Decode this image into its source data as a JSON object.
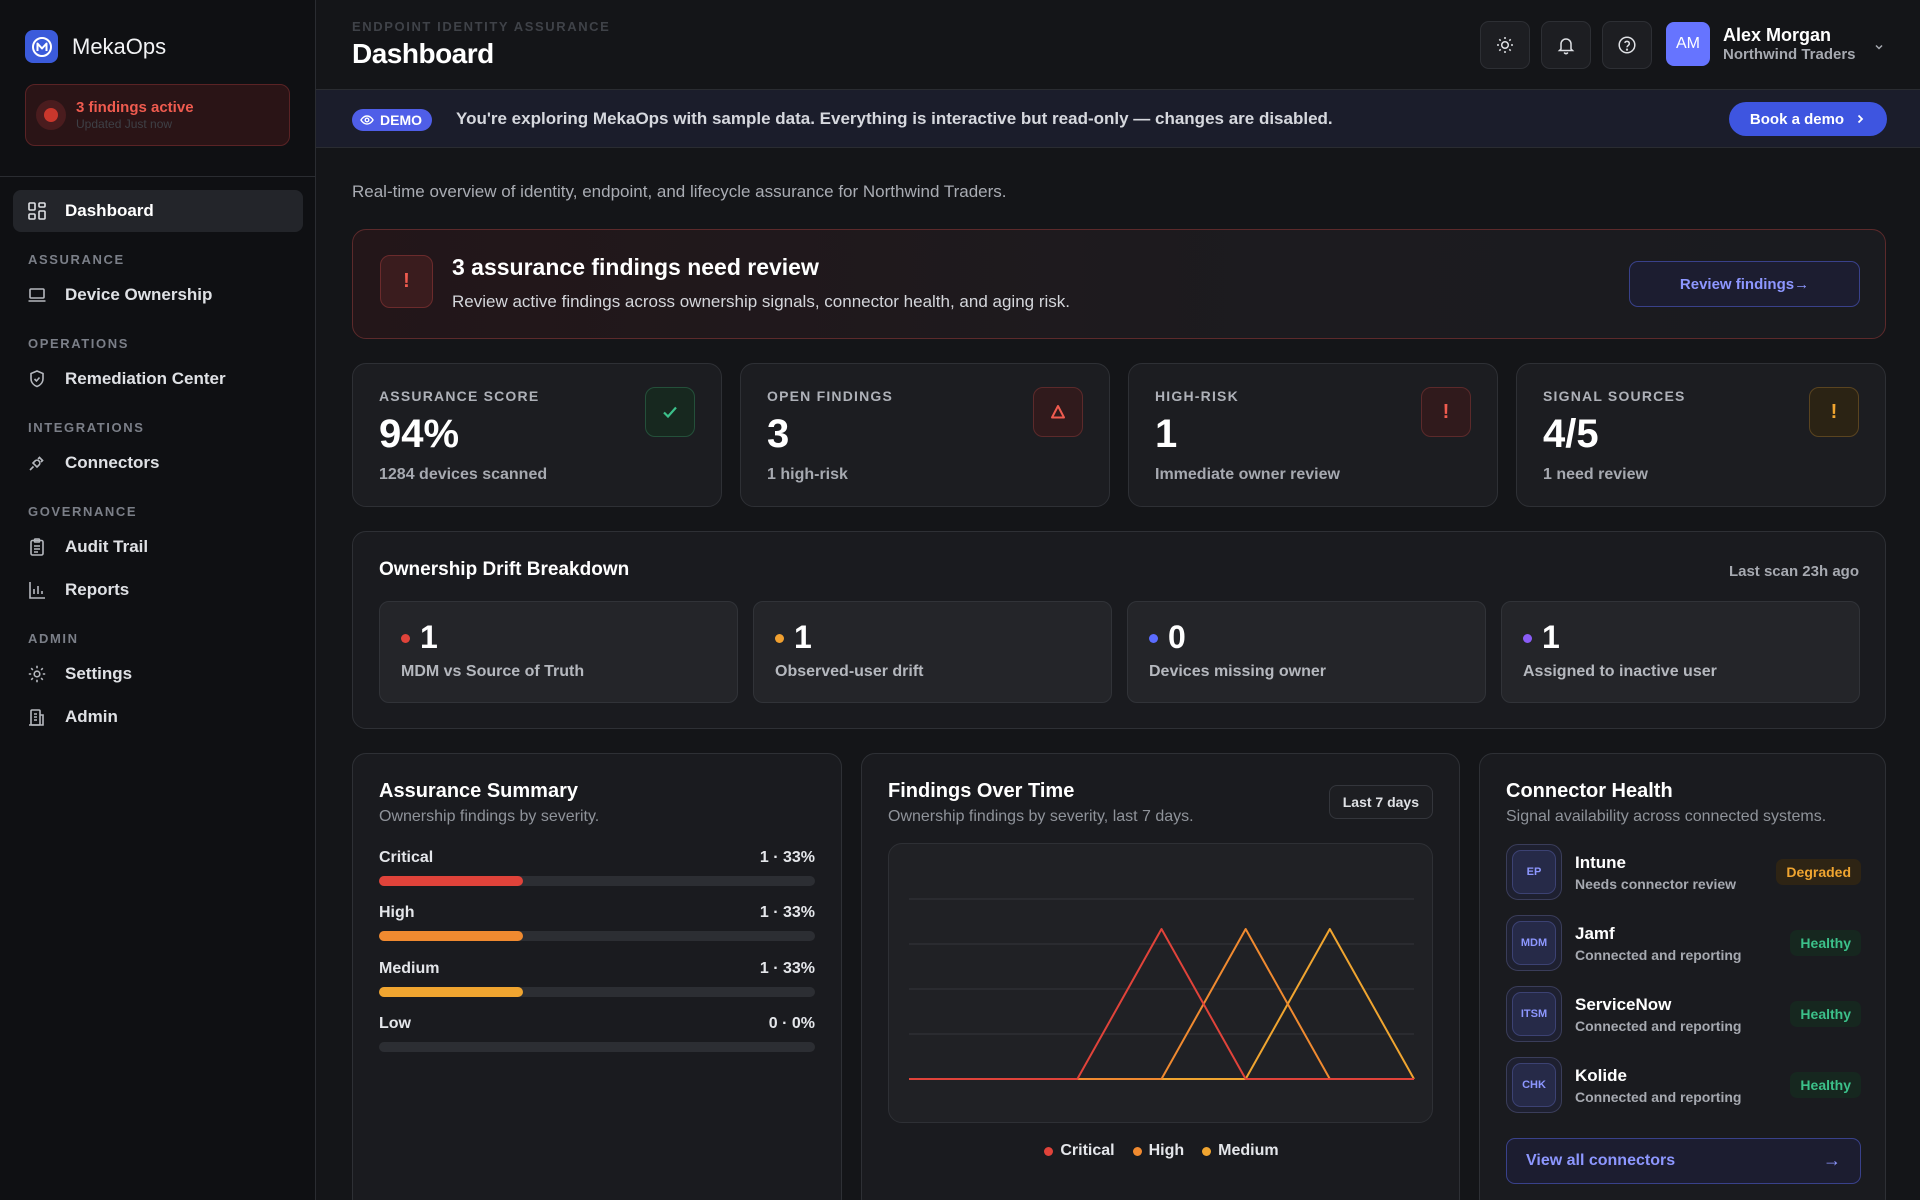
{
  "brand": {
    "name": "MekaOps"
  },
  "sidebar": {
    "alert": {
      "title": "3 findings active",
      "updated": "Updated Just now"
    },
    "dashboard_label": "Dashboard",
    "sections": {
      "assurance": "ASSURANCE",
      "operations": "OPERATIONS",
      "integrations": "INTEGRATIONS",
      "governance": "GOVERNANCE",
      "admin": "ADMIN"
    },
    "items": {
      "device_ownership": "Device Ownership",
      "remediation_center": "Remediation Center",
      "connectors": "Connectors",
      "audit_trail": "Audit Trail",
      "reports": "Reports",
      "settings": "Settings",
      "admin": "Admin"
    }
  },
  "header": {
    "eyebrow": "ENDPOINT IDENTITY ASSURANCE",
    "title": "Dashboard",
    "user": {
      "initials": "AM",
      "name": "Alex Morgan",
      "org": "Northwind Traders"
    }
  },
  "demo": {
    "tag": "DEMO",
    "text": "You're exploring MekaOps with sample data. Everything is interactive but read-only — changes are disabled.",
    "button": "Book a demo"
  },
  "subtitle": "Real-time overview of identity, endpoint, and lifecycle assurance for Northwind Traders.",
  "findings_banner": {
    "title": "3 assurance findings need review",
    "description": "Review active findings across ownership signals, connector health, and aging risk.",
    "button": "Review findings→"
  },
  "kpis": [
    {
      "label": "ASSURANCE SCORE",
      "value": "94%",
      "sub": "1284 devices scanned",
      "icon": "check-icon"
    },
    {
      "label": "OPEN FINDINGS",
      "value": "3",
      "sub": "1 high-risk",
      "icon": "triangle-icon"
    },
    {
      "label": "HIGH-RISK",
      "value": "1",
      "sub": "Immediate owner review",
      "icon": "exclamation-icon"
    },
    {
      "label": "SIGNAL SOURCES",
      "value": "4/5",
      "sub": "1 need review",
      "icon": "exclamation-icon"
    }
  ],
  "drift": {
    "title": "Ownership Drift Breakdown",
    "last_scan": "Last scan 23h ago",
    "items": [
      {
        "value": "1",
        "label": "MDM vs Source of Truth",
        "color": "#e0433a"
      },
      {
        "value": "1",
        "label": "Observed-user drift",
        "color": "#f0a030"
      },
      {
        "value": "0",
        "label": "Devices missing owner",
        "color": "#5b6cff"
      },
      {
        "value": "1",
        "label": "Assigned to inactive user",
        "color": "#8a5cf6"
      }
    ]
  },
  "summary": {
    "title": "Assurance Summary",
    "description": "Ownership findings by severity.",
    "rows": [
      {
        "label": "Critical",
        "value": "1 · 33%",
        "fraction": 0.33,
        "color": "#e0433a"
      },
      {
        "label": "High",
        "value": "1 · 33%",
        "fraction": 0.33,
        "color": "#f08a30"
      },
      {
        "label": "Medium",
        "value": "1 · 33%",
        "fraction": 0.33,
        "color": "#f0a530"
      },
      {
        "label": "Low",
        "value": "0 · 0%",
        "fraction": 0,
        "color": "#8a8d94"
      }
    ]
  },
  "findings_chart": {
    "title": "Findings Over Time",
    "description": "Ownership findings by severity, last 7 days.",
    "range": "Last 7 days",
    "legend": [
      "Critical",
      "High",
      "Medium"
    ]
  },
  "chart_data": {
    "type": "line",
    "x": [
      1,
      2,
      3,
      4,
      5,
      6,
      7
    ],
    "series": [
      {
        "name": "Critical",
        "color": "#e0433a",
        "values": [
          0,
          0,
          0,
          1,
          0,
          0,
          0
        ]
      },
      {
        "name": "High",
        "color": "#f08a30",
        "values": [
          0,
          0,
          0,
          0,
          1,
          0,
          0
        ]
      },
      {
        "name": "Medium",
        "color": "#f0a530",
        "values": [
          0,
          0,
          0,
          0,
          0,
          1,
          0
        ]
      }
    ],
    "ylim": [
      0,
      1.2
    ],
    "grid": true
  },
  "connectors": {
    "title": "Connector Health",
    "description": "Signal availability across connected systems.",
    "items": [
      {
        "code": "EP",
        "name": "Intune",
        "status": "Needs connector review",
        "badge": "Degraded",
        "badge_color": "#f0a530",
        "badge_bg": "#2e2414"
      },
      {
        "code": "MDM",
        "name": "Jamf",
        "status": "Connected and reporting",
        "badge": "Healthy",
        "badge_color": "#3cc08a",
        "badge_bg": "#16271f"
      },
      {
        "code": "ITSM",
        "name": "ServiceNow",
        "status": "Connected and reporting",
        "badge": "Healthy",
        "badge_color": "#3cc08a",
        "badge_bg": "#16271f"
      },
      {
        "code": "CHK",
        "name": "Kolide",
        "status": "Connected and reporting",
        "badge": "Healthy",
        "badge_color": "#3cc08a",
        "badge_bg": "#16271f"
      }
    ],
    "view_all": "View all connectors"
  }
}
